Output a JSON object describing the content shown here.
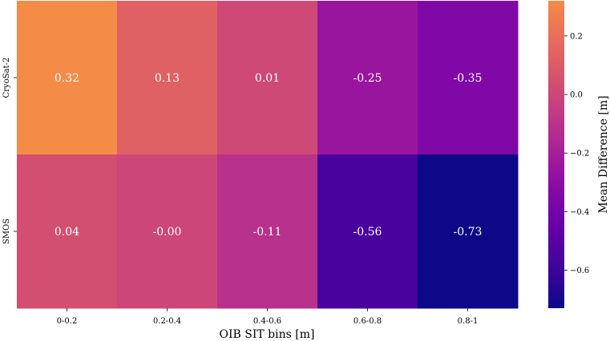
{
  "chart_data": {
    "type": "heatmap",
    "title": "",
    "xlabel": "OIB SIT bins [m]",
    "ylabel": "",
    "x_categories": [
      "0-0.2",
      "0.2-0.4",
      "0.4-0.6",
      "0.6-0.8",
      "0.8-1"
    ],
    "y_categories": [
      "CryoSat-2",
      "SMOS"
    ],
    "values": [
      [
        0.32,
        0.13,
        0.01,
        -0.25,
        -0.35
      ],
      [
        0.04,
        -0.0,
        -0.11,
        -0.56,
        -0.73
      ]
    ],
    "annotations": [
      [
        "0.32",
        "0.13",
        "0.01",
        "-0.25",
        "-0.35"
      ],
      [
        "0.04",
        "-0.00",
        "-0.11",
        "-0.56",
        "-0.73"
      ]
    ],
    "colormap": "plasma",
    "colorbar": {
      "label": "Mean Difference [m]",
      "vmin": -0.73,
      "vmax": 0.32,
      "ticks": [
        0.2,
        0.0,
        -0.2,
        -0.4,
        -0.6
      ],
      "tick_labels": [
        "0.2",
        "0.0",
        "−0.2",
        "−0.4",
        "−0.6"
      ]
    },
    "grid": false,
    "legend": "none"
  }
}
